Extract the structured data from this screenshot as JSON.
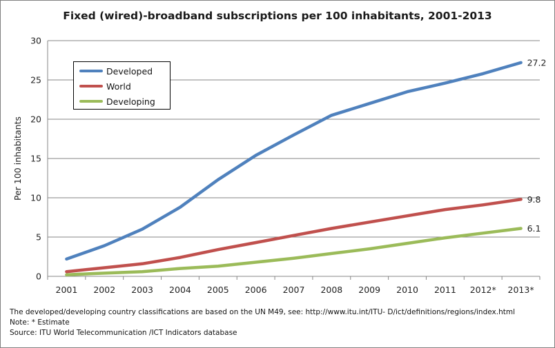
{
  "title": "Fixed (wired)-broadband subscriptions per 100 inhabitants, 2001-2013",
  "notes": {
    "line1": "The developed/developing country classifications are based on the UN M49, see: http://www.itu.int/ITU- D/ict/definitions/regions/index.html",
    "line2": "Note: * Estimate",
    "line3": "Source:  ITU World Telecommunication /ICT Indicators database"
  },
  "chart_data": {
    "type": "line",
    "title": "Fixed (wired)-broadband subscriptions per 100 inhabitants, 2001-2013",
    "xlabel": "",
    "ylabel": "Per 100 inhabitants",
    "ylim": [
      0,
      30
    ],
    "yticks": [
      "0",
      "5",
      "10",
      "15",
      "20",
      "25",
      "30"
    ],
    "grid": true,
    "legend_position": "top-left",
    "categories": [
      "2001",
      "2002",
      "2003",
      "2004",
      "2005",
      "2006",
      "2007",
      "2008",
      "2009",
      "2010",
      "2011",
      "2012*",
      "2013*"
    ],
    "series": [
      {
        "name": "Developed",
        "color": "#4f81bd",
        "values": [
          2.2,
          3.9,
          6.0,
          8.8,
          12.3,
          15.4,
          18.0,
          20.5,
          22.0,
          23.5,
          24.6,
          25.8,
          27.2
        ],
        "end_label": "27.2"
      },
      {
        "name": "World",
        "color": "#c0504d",
        "values": [
          0.6,
          1.1,
          1.6,
          2.4,
          3.4,
          4.3,
          5.2,
          6.1,
          6.9,
          7.7,
          8.5,
          9.1,
          9.8
        ],
        "end_label": "9.8"
      },
      {
        "name": "Developing",
        "color": "#9bbb59",
        "values": [
          0.2,
          0.4,
          0.6,
          1.0,
          1.3,
          1.8,
          2.3,
          2.9,
          3.5,
          4.2,
          4.9,
          5.5,
          6.1
        ],
        "end_label": "6.1"
      }
    ]
  }
}
